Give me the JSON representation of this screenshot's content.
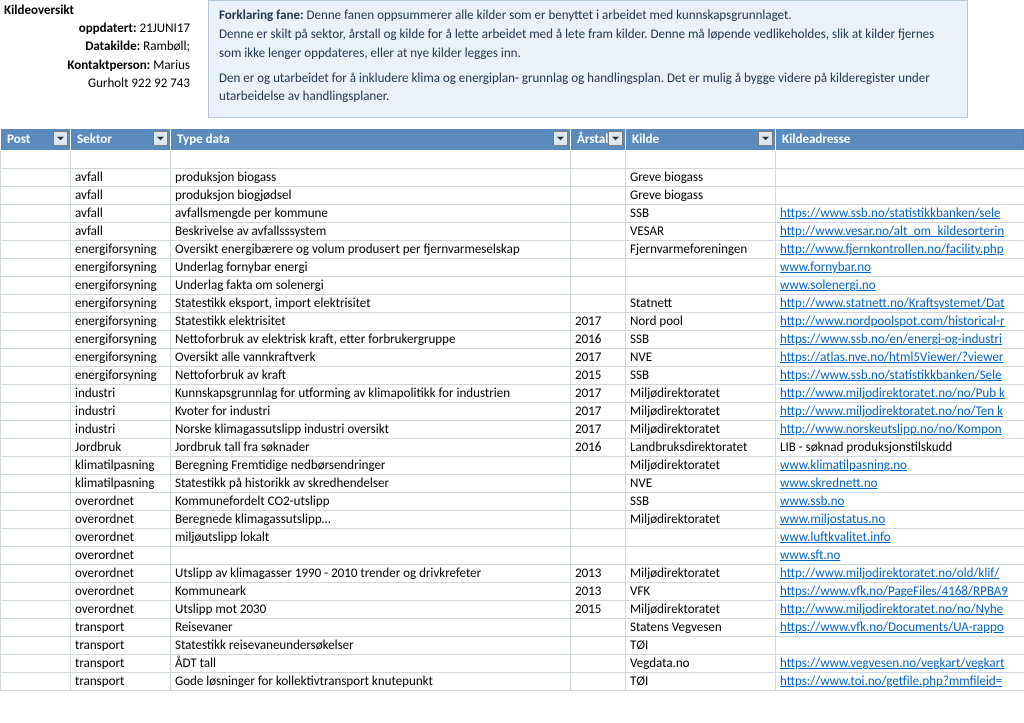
{
  "meta": {
    "title": "Kildeoversikt",
    "updated_label": "oppdatert:",
    "updated_value": "21JUNI17",
    "datakilde_label": "Datakilde:",
    "datakilde_value": "Rambøll;",
    "kontakt_label": "Kontaktperson:",
    "kontakt_value": "Marius",
    "kontakt_line2": "Gurholt 922 92 743"
  },
  "description": {
    "heading": "Forklaring fane:",
    "p1": "Denne fanen oppsummerer alle kilder som er benyttet i arbeidet med kunnskapsgrunnlaget.",
    "p2": "Denne er skilt på sektor, årstall og kilde for å lette arbeidet med å lete fram kilder. Denne må løpende vedlikeholdes, slik at kilder fjernes som ikke lenger oppdateres, eller  at nye kilder legges inn.",
    "p3": "Den er og utarbeidet for å inkludere klima og energiplan- grunnlag og handlingsplan. Det er mulig å bygge videre på kilderegister under utarbeidelse av handlingsplaner."
  },
  "columns": {
    "post": "Post",
    "sektor": "Sektor",
    "type": "Type data",
    "arstall": "Årstall",
    "kilde": "Kilde",
    "adresse": "Kildeadresse"
  },
  "rows": [
    {
      "sektor": "",
      "type": "",
      "ar": "",
      "kilde": "",
      "addr": ""
    },
    {
      "sektor": "avfall",
      "type": "produksjon biogass",
      "ar": "",
      "kilde": "Greve biogass",
      "addr": ""
    },
    {
      "sektor": "avfall",
      "type": "produksjon biogjødsel",
      "ar": "",
      "kilde": "Greve biogass",
      "addr": ""
    },
    {
      "sektor": "avfall",
      "type": "avfallsmengde per kommune",
      "ar": "",
      "kilde": "SSB",
      "addr": "https://www.ssb.no/statistikkbanken/sele"
    },
    {
      "sektor": "avfall",
      "type": "Beskrivelse av avfallsssystem",
      "ar": "",
      "kilde": "VESAR",
      "addr": "http://www.vesar.no/alt_om_kildesorterin"
    },
    {
      "sektor": "energiforsyning",
      "type": "Oversikt energibærere og volum produsert per fjernvarmeselskap",
      "ar": "",
      "kilde": "Fjernvarmeforeningen",
      "addr": "http://www.fjernkontrollen.no/facility.php"
    },
    {
      "sektor": "energiforsyning",
      "type": "Underlag fornybar energi",
      "ar": "",
      "kilde": "",
      "addr": "www.fornybar.no"
    },
    {
      "sektor": "energiforsyning",
      "type": "Underlag fakta om solenergi",
      "ar": "",
      "kilde": "",
      "addr": "www.solenergi.no"
    },
    {
      "sektor": "energiforsyning",
      "type": "Statestikk eksport, import elektrisitet",
      "ar": "",
      "kilde": "Statnett",
      "addr": "http://www.statnett.no/Kraftsystemet/Dat"
    },
    {
      "sektor": "energiforsyning",
      "type": "Statestikk elektrisitet",
      "ar": "2017",
      "kilde": "Nord pool",
      "addr": "http://www.nordpoolspot.com/historical-r"
    },
    {
      "sektor": "energiforsyning",
      "type": "Nettoforbruk av elektrisk kraft, etter forbrukergruppe",
      "ar": "2016",
      "kilde": "SSB",
      "addr": "https://www.ssb.no/en/energi-og-industri"
    },
    {
      "sektor": "energiforsyning",
      "type": "Oversikt alle vannkraftverk",
      "ar": "2017",
      "kilde": "NVE",
      "addr": "https://atlas.nve.no/html5Viewer/?viewer"
    },
    {
      "sektor": "energiforsyning",
      "type": "Nettoforbruk av kraft",
      "ar": "2015",
      "kilde": "SSB",
      "addr": "https://www.ssb.no/statistikkbanken/Sele"
    },
    {
      "sektor": "industri",
      "type": "Kunnskapsgrunnlag for utforming av klimapolitikk for industrien",
      "ar": "2017",
      "kilde": "Miljødirektoratet",
      "addr": "http://www.miljodirektoratet.no/no/Pub k"
    },
    {
      "sektor": "industri",
      "type": "Kvoter for industri",
      "ar": "2017",
      "kilde": "Miljødirektoratet",
      "addr": "http://www.miljodirektoratet.no/no/Ten k"
    },
    {
      "sektor": "industri",
      "type": "Norske klimagassutslipp industri oversikt",
      "ar": "2017",
      "kilde": "Miljødirektoratet",
      "addr": "http://www.norskeutslipp.no/no/Kompon"
    },
    {
      "sektor": "Jordbruk",
      "type": "Jordbruk tall fra søknader",
      "ar": "2016",
      "kilde": "Landbruksdirektoratet",
      "addr": "LIB - søknad produksjonstilskudd",
      "plain": true
    },
    {
      "sektor": "klimatilpasning",
      "type": "Beregning Fremtidige nedbørsendringer",
      "ar": "",
      "kilde": "Miljødirektoratet",
      "addr": "www.klimatilpasning.no"
    },
    {
      "sektor": "klimatilpasning",
      "type": "Statestikk på historikk av skredhendelser",
      "ar": "",
      "kilde": "NVE",
      "addr": "www.skrednett.no"
    },
    {
      "sektor": "overordnet",
      "type": "Kommunefordelt CO2-utslipp",
      "ar": "",
      "kilde": "SSB",
      "addr": "www.ssb.no"
    },
    {
      "sektor": "overordnet",
      "type": "Beregnede klimagassutslipp…",
      "ar": "",
      "kilde": "Miljødirektoratet",
      "addr": "www.miljostatus.no"
    },
    {
      "sektor": "overordnet",
      "type": "miljøutslipp lokalt",
      "ar": "",
      "kilde": "",
      "addr": "www.luftkvalitet.info"
    },
    {
      "sektor": "overordnet",
      "type": "",
      "ar": "",
      "kilde": "",
      "addr": "www.sft.no"
    },
    {
      "sektor": "overordnet",
      "type": "Utslipp av klimagasser 1990 - 2010 trender og drivkrefeter",
      "ar": "2013",
      "kilde": "Miljødirektoratet",
      "addr": "http://www.miljodirektoratet.no/old/klif/"
    },
    {
      "sektor": "overordnet",
      "type": "Kommuneark",
      "ar": "2013",
      "kilde": "VFK",
      "addr": "https://www.vfk.no/PageFiles/4168/RPBA9"
    },
    {
      "sektor": "overordnet",
      "type": "Utslipp mot 2030",
      "ar": "2015",
      "kilde": "Miljødirektoratet",
      "addr": "http://www.miljodirektoratet.no/no/Nyhe"
    },
    {
      "sektor": "transport",
      "type": "Reisevaner",
      "ar": "",
      "kilde": "Statens Vegvesen",
      "addr": "https://www.vfk.no/Documents/UA-rappo"
    },
    {
      "sektor": "transport",
      "type": "Statestikk reisevaneundersøkelser",
      "ar": "",
      "kilde": "TØI",
      "addr": ""
    },
    {
      "sektor": "transport",
      "type": "ÅDT tall",
      "ar": "",
      "kilde": "Vegdata.no",
      "addr": "https://www.vegvesen.no/vegkart/vegkart"
    },
    {
      "sektor": "transport",
      "type": "Gode løsninger for kollektivtransport knutepunkt",
      "ar": "",
      "kilde": "TØI",
      "addr": "https://www.toi.no/getfile.php?mmfileid="
    }
  ]
}
